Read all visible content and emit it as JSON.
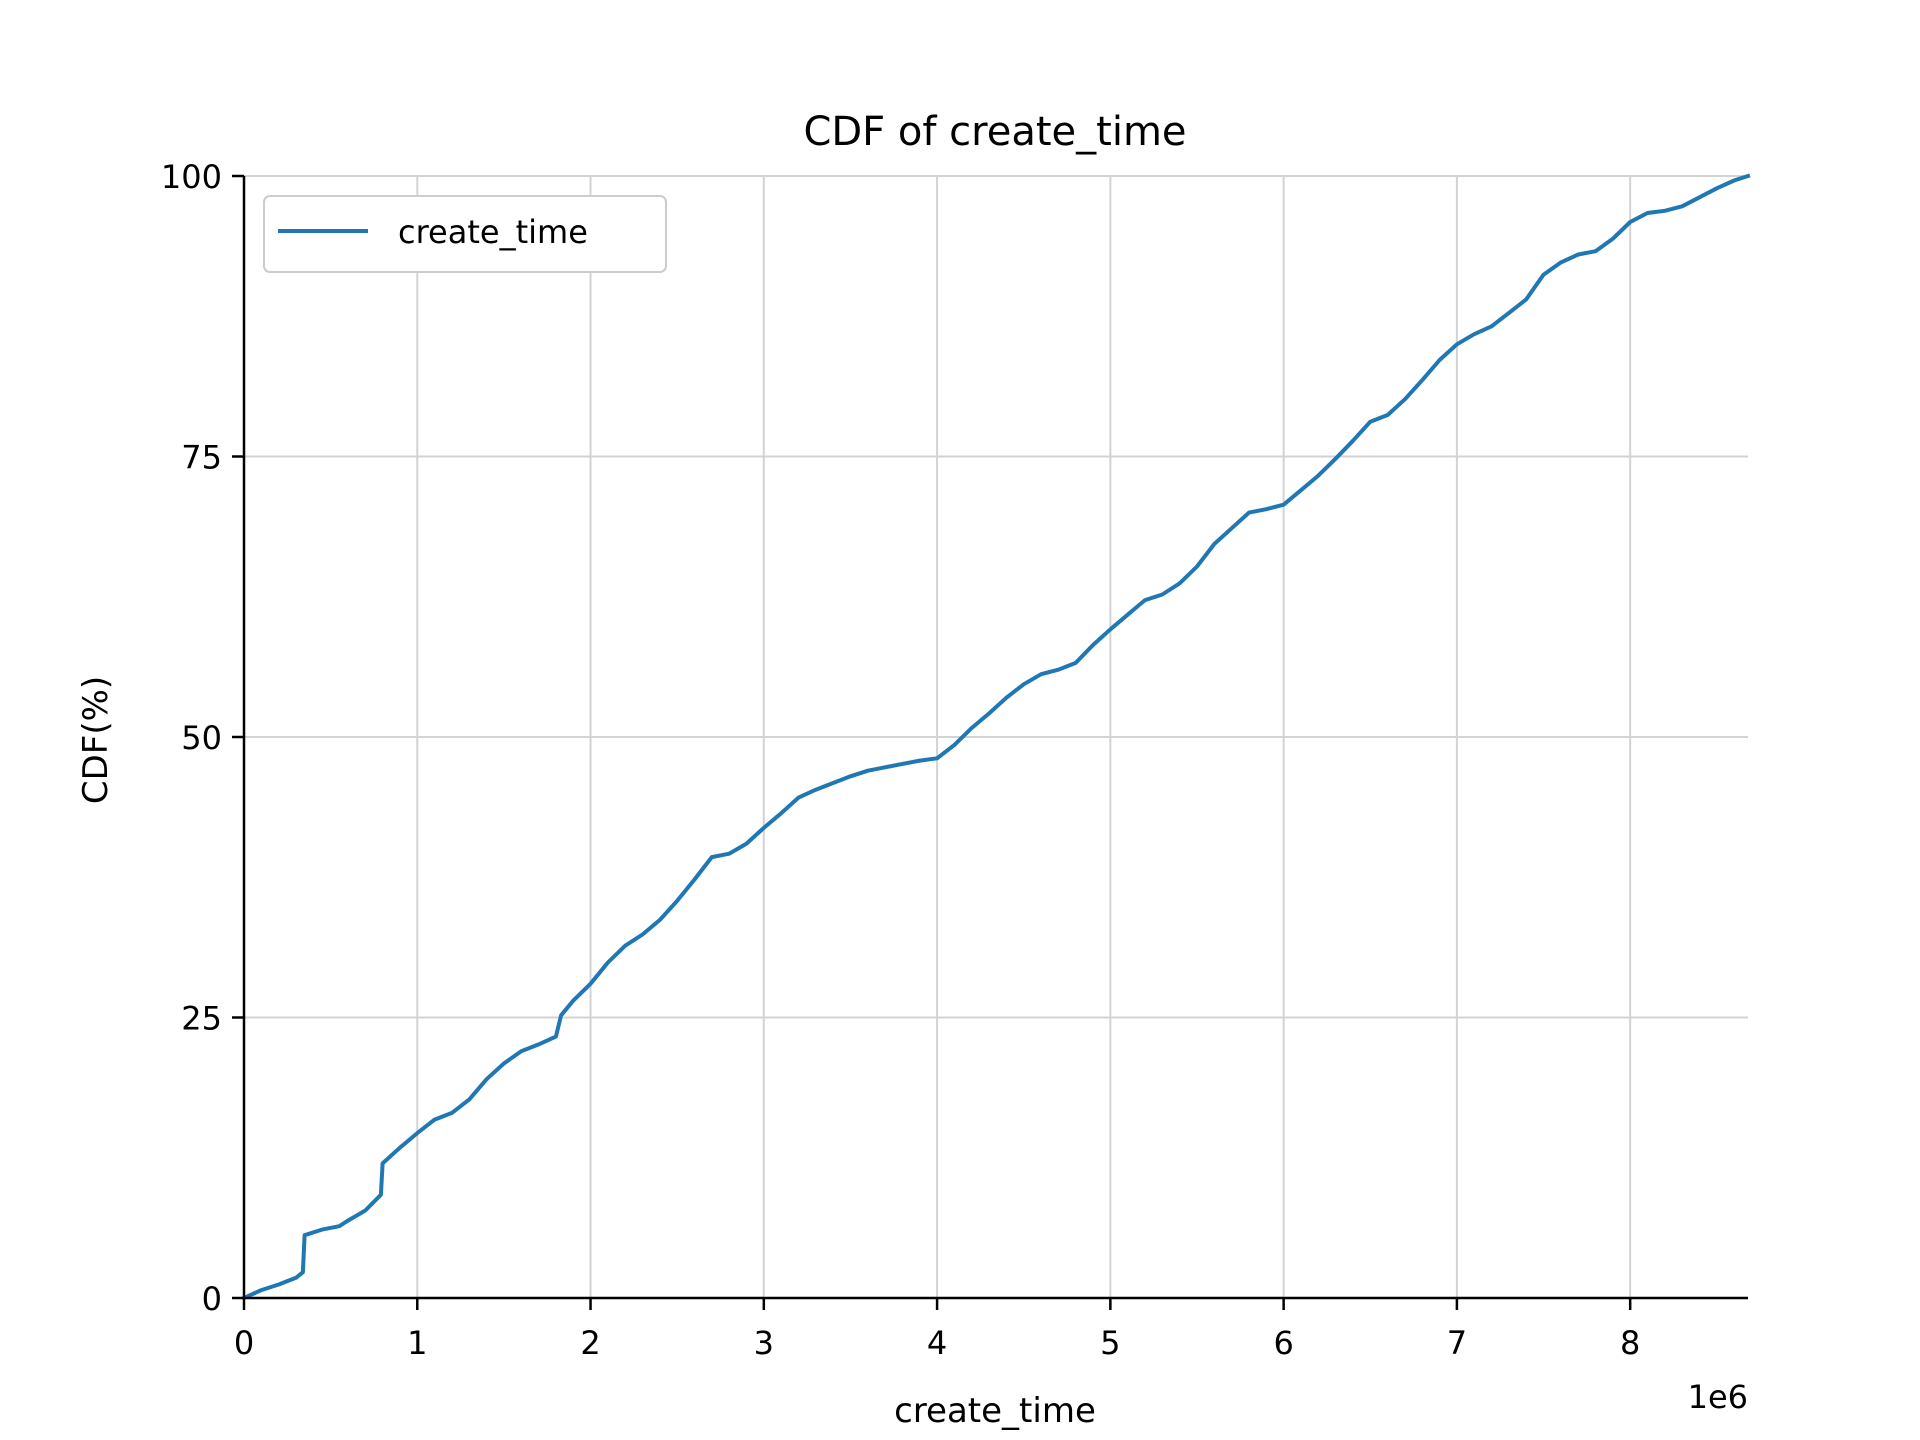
{
  "chart_data": {
    "type": "line",
    "title": "CDF of create_time",
    "xlabel": "create_time",
    "ylabel": "CDF(%)",
    "x_multiplier_label": "1e6",
    "xlim": [
      0,
      8.68
    ],
    "ylim": [
      0,
      100
    ],
    "x_ticks": [
      0,
      1,
      2,
      3,
      4,
      5,
      6,
      7,
      8
    ],
    "x_tick_labels": [
      "0",
      "1",
      "2",
      "3",
      "4",
      "5",
      "6",
      "7",
      "8"
    ],
    "y_ticks": [
      0,
      25,
      50,
      75,
      100
    ],
    "y_tick_labels": [
      "0",
      "25",
      "50",
      "75",
      "100"
    ],
    "grid": true,
    "legend_position": "upper-left",
    "colors": {
      "series": "#1f77b4",
      "grid": "#d3d3d3",
      "axis": "#000000"
    },
    "series": [
      {
        "name": "create_time",
        "x": [
          0,
          0.1,
          0.2,
          0.3,
          0.34,
          0.35,
          0.45,
          0.55,
          0.6,
          0.7,
          0.79,
          0.8,
          0.9,
          1.0,
          1.1,
          1.2,
          1.3,
          1.4,
          1.5,
          1.6,
          1.7,
          1.8,
          1.83,
          1.9,
          2.0,
          2.1,
          2.2,
          2.3,
          2.4,
          2.5,
          2.6,
          2.7,
          2.8,
          2.9,
          3.0,
          3.1,
          3.2,
          3.3,
          3.4,
          3.5,
          3.6,
          3.7,
          3.8,
          3.9,
          4.0,
          4.1,
          4.2,
          4.3,
          4.4,
          4.5,
          4.6,
          4.7,
          4.8,
          4.9,
          5.0,
          5.1,
          5.2,
          5.3,
          5.4,
          5.5,
          5.6,
          5.7,
          5.8,
          5.9,
          6.0,
          6.1,
          6.2,
          6.3,
          6.4,
          6.5,
          6.6,
          6.7,
          6.8,
          6.9,
          7.0,
          7.1,
          7.2,
          7.3,
          7.4,
          7.5,
          7.6,
          7.7,
          7.8,
          7.9,
          8.0,
          8.1,
          8.2,
          8.3,
          8.4,
          8.5,
          8.6,
          8.68
        ],
        "y": [
          0,
          0.7,
          1.2,
          1.8,
          2.3,
          5.6,
          6.1,
          6.4,
          6.9,
          7.8,
          9.2,
          12.0,
          13.4,
          14.7,
          15.9,
          16.5,
          17.7,
          19.5,
          20.9,
          22.0,
          22.6,
          23.3,
          25.2,
          26.5,
          28.0,
          29.9,
          31.4,
          32.4,
          33.7,
          35.4,
          37.3,
          39.3,
          39.6,
          40.5,
          41.9,
          43.2,
          44.6,
          45.3,
          45.9,
          46.5,
          47.0,
          47.3,
          47.6,
          47.9,
          48.1,
          49.3,
          50.8,
          52.1,
          53.5,
          54.7,
          55.6,
          56.0,
          56.6,
          58.2,
          59.6,
          60.9,
          62.2,
          62.7,
          63.7,
          65.2,
          67.2,
          68.6,
          70.0,
          70.3,
          70.7,
          72.0,
          73.3,
          74.8,
          76.4,
          78.1,
          78.7,
          80.1,
          81.8,
          83.6,
          85.0,
          85.9,
          86.6,
          87.8,
          89.0,
          91.2,
          92.3,
          93.0,
          93.3,
          94.4,
          95.9,
          96.7,
          96.9,
          97.3,
          98.1,
          98.9,
          99.6,
          100
        ]
      }
    ]
  }
}
